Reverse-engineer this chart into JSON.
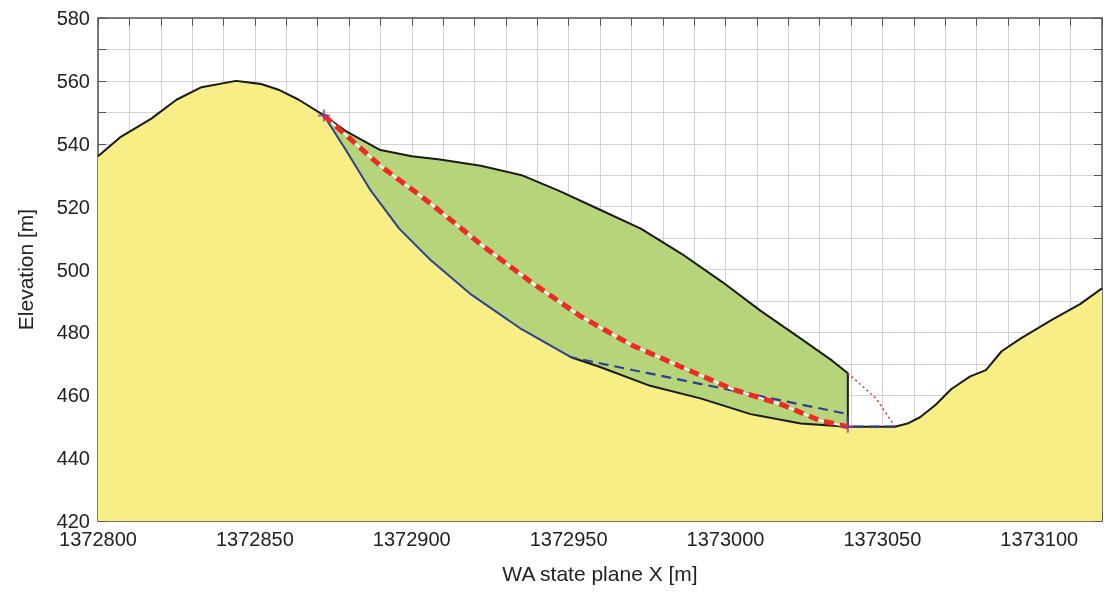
{
  "chart_data": {
    "type": "line",
    "xlabel": "WA state plane X [m]",
    "ylabel": "Elevation [m]",
    "xlim": [
      1372800,
      1373120
    ],
    "ylim": [
      420,
      580
    ],
    "grid": true,
    "xticks": [
      1372800,
      {
        "value": 1372810,
        "label": null
      },
      {
        "value": 1372820,
        "label": null
      },
      {
        "value": 1372830,
        "label": null
      },
      {
        "value": 1372840,
        "label": null
      },
      1372850,
      {
        "value": 1372860,
        "label": null
      },
      {
        "value": 1372870,
        "label": null
      },
      {
        "value": 1372880,
        "label": null
      },
      {
        "value": 1372890,
        "label": null
      },
      1372900,
      {
        "value": 1372910,
        "label": null
      },
      {
        "value": 1372920,
        "label": null
      },
      {
        "value": 1372930,
        "label": null
      },
      {
        "value": 1372940,
        "label": null
      },
      1372950,
      {
        "value": 1372960,
        "label": null
      },
      {
        "value": 1372970,
        "label": null
      },
      {
        "value": 1372980,
        "label": null
      },
      {
        "value": 1372990,
        "label": null
      },
      1373000,
      {
        "value": 1373010,
        "label": null
      },
      {
        "value": 1373020,
        "label": null
      },
      {
        "value": 1373030,
        "label": null
      },
      {
        "value": 1373040,
        "label": null
      },
      1373050,
      {
        "value": 1373060,
        "label": null
      },
      {
        "value": 1373070,
        "label": null
      },
      {
        "value": 1373080,
        "label": null
      },
      {
        "value": 1373090,
        "label": null
      },
      1373100,
      {
        "value": 1373110,
        "label": null
      },
      {
        "value": 1373120,
        "label": null
      }
    ],
    "yticks": [
      420,
      {
        "value": 430,
        "label": null
      },
      440,
      {
        "value": 450,
        "label": null
      },
      460,
      {
        "value": 470,
        "label": null
      },
      480,
      {
        "value": 490,
        "label": null
      },
      500,
      {
        "value": 510,
        "label": null
      },
      520,
      {
        "value": 530,
        "label": null
      },
      540,
      {
        "value": 550,
        "label": null
      },
      560,
      {
        "value": 570,
        "label": null
      },
      580
    ],
    "series": [
      {
        "type": "area",
        "color": "#b6d47a",
        "x": [
          1372872,
          1372879,
          1372890,
          1372900,
          1372909,
          1372922,
          1372935,
          1372947,
          1372960,
          1372973,
          1372986,
          1372999,
          1373011,
          1373024,
          1373034,
          1373039,
          1373039
        ],
        "values": [
          549,
          544,
          538,
          536,
          535,
          533,
          530,
          525,
          519,
          513,
          505,
          496,
          487,
          478,
          471,
          467,
          450
        ]
      },
      {
        "type": "area",
        "color": "#f7ee85",
        "x": [
          1372800,
          1372807,
          1372817,
          1372825,
          1372833,
          1372844,
          1372852,
          1372858,
          1372864,
          1372872,
          1372879,
          1372887,
          1372896,
          1372906,
          1372919,
          1372935,
          1372951,
          1372960,
          1372976,
          1372992,
          1373008,
          1373024,
          1373039,
          1373050,
          1373058,
          1373062,
          1373067,
          1373072,
          1373078,
          1373083,
          1373088,
          1373094,
          1373104,
          1373113,
          1373120
        ],
        "values": [
          536,
          542,
          548,
          554,
          558,
          560,
          559,
          557,
          554,
          549,
          538,
          525,
          513,
          503,
          492,
          481,
          472,
          469,
          463,
          459,
          454,
          451,
          450,
          450,
          451,
          453,
          457,
          462,
          466,
          468,
          474,
          478,
          484,
          489,
          494
        ]
      },
      {
        "color": "#1a1a1a",
        "line_style": "solid",
        "x": [
          1373120,
          1373113,
          1373104,
          1373094,
          1373088,
          1373083,
          1373078,
          1373072,
          1373067,
          1373062,
          1373058,
          1373054,
          1373039,
          1373024,
          1373008,
          1372992,
          1372976,
          1372960,
          1372951,
          1372960,
          1372976,
          1372992,
          1373008,
          1373024,
          1373039,
          1373039,
          1373034,
          1373024,
          1373011,
          1372999,
          1372986,
          1372973,
          1372960,
          1372947,
          1372935,
          1372922,
          1372909,
          1372900,
          1372890,
          1372879,
          1372872,
          1372864,
          1372858,
          1372852,
          1372844,
          1372833,
          1372825,
          1372817,
          1372807,
          1372800
        ],
        "values": [
          494,
          489,
          484,
          478,
          474,
          468,
          466,
          462,
          457,
          453,
          451,
          450,
          450,
          451,
          454,
          459,
          463,
          469,
          472,
          469,
          463,
          459,
          454,
          451,
          450,
          467,
          471,
          478,
          487,
          496,
          505,
          513,
          519,
          525,
          530,
          533,
          535,
          536,
          538,
          544,
          549,
          554,
          557,
          559,
          560,
          558,
          554,
          548,
          542,
          536
        ]
      },
      {
        "color": "#2e3f8f",
        "line_style": "solid",
        "x": [
          1372872,
          1372879,
          1372887,
          1372896,
          1372906,
          1372919,
          1372935,
          1372951
        ],
        "values": [
          549,
          538,
          525,
          513,
          503,
          492,
          481,
          472
        ]
      },
      {
        "color": "#2e3f8f",
        "line_style": "dashed",
        "x": [
          1373054,
          1373039,
          1373039,
          1372951
        ],
        "values": [
          450,
          450,
          454,
          472
        ]
      },
      {
        "color": "#d33a2c",
        "line_style": "dotted",
        "x": [
          1373039,
          1373048,
          1373054
        ],
        "values": [
          467,
          459,
          450
        ]
      },
      {
        "color": "#ffffff",
        "line_style": "solid",
        "x": [
          1372872,
          1372890,
          1372906,
          1372922,
          1372938,
          1372954,
          1372970,
          1372986,
          1373002,
          1373018,
          1373030,
          1373039
        ],
        "values": [
          549,
          533,
          521,
          508,
          496,
          485,
          476,
          469,
          462,
          457,
          452,
          450
        ]
      },
      {
        "color": "#ee2a24",
        "line_style": "dashed",
        "x": [
          1372872,
          1372890,
          1372906,
          1372922,
          1372938,
          1372954,
          1372970,
          1372986,
          1373002,
          1373018,
          1373030,
          1373039
        ],
        "values": [
          549,
          533,
          521,
          508,
          496,
          485,
          476,
          469,
          462,
          457,
          452,
          450
        ]
      },
      {
        "type": "scatter",
        "color": "#8a3f9a",
        "marker": "cross",
        "x": [
          1372872,
          1373039
        ],
        "values": [
          549,
          450
        ]
      }
    ]
  }
}
